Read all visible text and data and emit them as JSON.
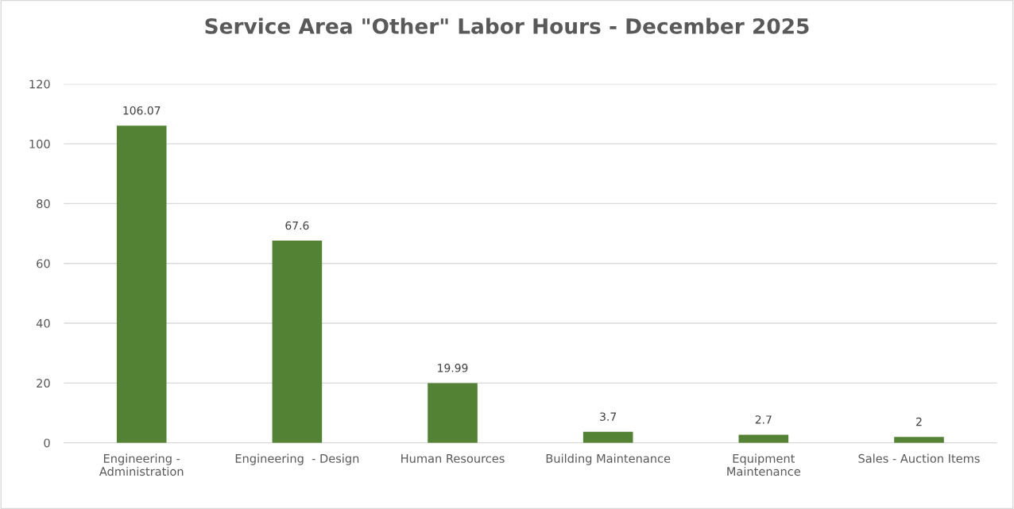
{
  "chart_data": {
    "type": "bar",
    "title": "Service Area \"Other\" Labor Hours - December 2025",
    "categories": [
      "Engineering -\nAdministration",
      "Engineering  - Design",
      "Human Resources",
      "Building Maintenance",
      "Equipment\nMaintenance",
      "Sales - Auction Items"
    ],
    "values": [
      106.07,
      67.6,
      19.99,
      3.7,
      2.7,
      2
    ],
    "color": "#548235",
    "ylim": [
      0,
      120
    ],
    "yticks": [
      0,
      20,
      40,
      60,
      80,
      100,
      120
    ],
    "grid": "y",
    "data_labels": true
  }
}
